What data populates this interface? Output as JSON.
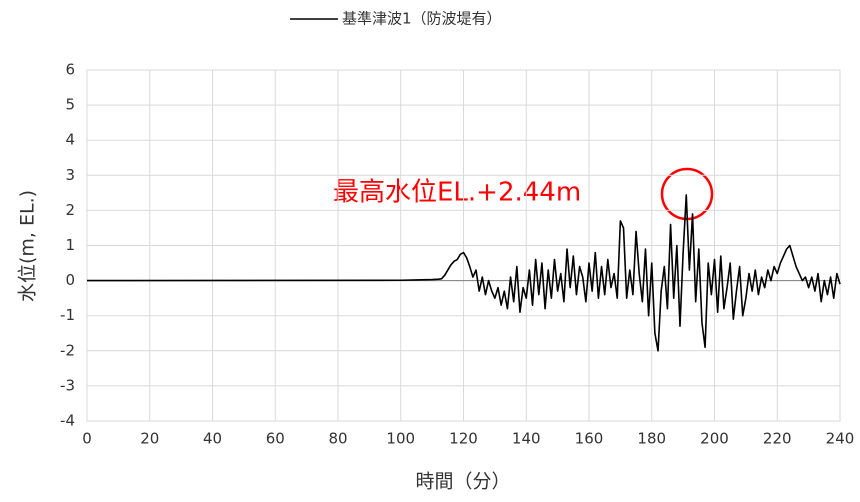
{
  "chart_data": {
    "type": "line",
    "x_label": "時間（分）",
    "y_label": "水位(m, EL.)",
    "annotation": "最高水位EL.+2.44m",
    "x": [
      0,
      100,
      105,
      110,
      112,
      113,
      114,
      115,
      116,
      117,
      118,
      119,
      120,
      121,
      122,
      123,
      124,
      125,
      126,
      127,
      128,
      129,
      130,
      131,
      132,
      133,
      134,
      135,
      136,
      137,
      138,
      139,
      140,
      141,
      142,
      143,
      144,
      145,
      146,
      147,
      148,
      149,
      150,
      151,
      152,
      153,
      154,
      155,
      156,
      157,
      158,
      159,
      160,
      161,
      162,
      163,
      164,
      165,
      166,
      167,
      168,
      169,
      170,
      171,
      172,
      173,
      174,
      175,
      176,
      177,
      178,
      179,
      180,
      181,
      182,
      183,
      184,
      185,
      186,
      187,
      188,
      189,
      190,
      191,
      192,
      193,
      194,
      195,
      196,
      197,
      198,
      199,
      200,
      201,
      202,
      203,
      204,
      205,
      206,
      207,
      208,
      209,
      210,
      211,
      212,
      213,
      214,
      215,
      216,
      217,
      218,
      219,
      220,
      221,
      222,
      223,
      224,
      225,
      226,
      227,
      228,
      229,
      230,
      231,
      232,
      233,
      234,
      235,
      236,
      237,
      238,
      239,
      240
    ],
    "series": [
      {
        "name": "基準津波1（防波堤有）",
        "color": "#000000",
        "values": [
          0,
          0.01,
          0.02,
          0.03,
          0.04,
          0.05,
          0.15,
          0.3,
          0.45,
          0.55,
          0.6,
          0.75,
          0.8,
          0.65,
          0.4,
          0.1,
          0.3,
          -0.3,
          0.1,
          -0.4,
          0.0,
          -0.3,
          -0.5,
          -0.2,
          -0.7,
          -0.3,
          -0.8,
          0.1,
          -0.6,
          0.4,
          -0.9,
          -0.2,
          -0.5,
          0.3,
          -0.7,
          0.6,
          -0.4,
          0.5,
          -0.8,
          0.3,
          -0.5,
          0.6,
          -0.3,
          0.2,
          -0.6,
          0.9,
          -0.2,
          0.7,
          -0.4,
          0.4,
          0.1,
          -0.6,
          0.5,
          -0.3,
          0.8,
          -0.5,
          0.4,
          -0.4,
          0.6,
          -0.2,
          0.2,
          -0.5,
          1.7,
          1.5,
          -0.5,
          0.3,
          -0.4,
          1.4,
          0.2,
          -0.6,
          0.9,
          -1.0,
          0.5,
          -1.5,
          -2.0,
          -0.3,
          0.4,
          -0.8,
          1.6,
          -0.5,
          1.0,
          -1.3,
          0.8,
          2.44,
          0.3,
          1.9,
          -0.6,
          0.9,
          -1.2,
          -1.9,
          0.5,
          -0.4,
          0.6,
          -0.9,
          0.7,
          -0.8,
          -0.2,
          0.5,
          -1.1,
          -0.3,
          0.4,
          -1.0,
          -0.5,
          0.2,
          -0.3,
          0.3,
          -0.4,
          0.1,
          -0.2,
          0.3,
          0.0,
          0.4,
          0.2,
          0.5,
          0.7,
          0.9,
          1.0,
          0.7,
          0.4,
          0.2,
          0.0,
          0.1,
          -0.2,
          0.1,
          -0.3,
          0.2,
          -0.6,
          0.0,
          -0.4,
          0.1,
          -0.5,
          0.2,
          -0.1
        ]
      }
    ],
    "xlim": [
      0,
      240
    ],
    "xticks": [
      0,
      20,
      40,
      60,
      80,
      100,
      120,
      140,
      160,
      180,
      200,
      220,
      240
    ],
    "ylim": [
      -4,
      6
    ],
    "yticks": [
      -4,
      -3,
      -2,
      -1,
      0,
      1,
      2,
      3,
      4,
      5,
      6
    ],
    "grid": true,
    "annotation_color": "#ff0000"
  }
}
